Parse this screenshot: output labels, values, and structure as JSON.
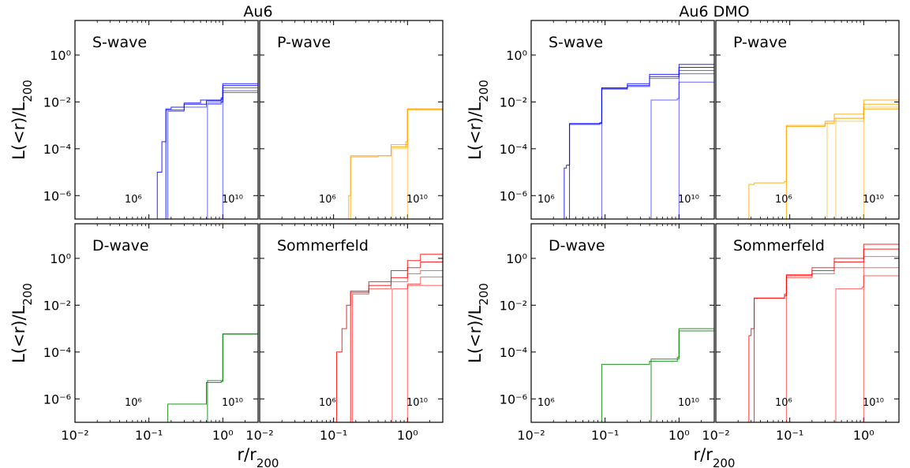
{
  "figure": {
    "panel_groups": [
      {
        "title": "Au6"
      },
      {
        "title": "Au6 DMO"
      }
    ],
    "ylabel": "L(<r)/L200",
    "xlabel": "r/r200",
    "x_tick_labels": [
      "10⁻²",
      "10⁻¹",
      "10⁰"
    ],
    "y_tick_labels": [
      "10⁰",
      "10⁻²",
      "10⁻⁴",
      "10⁻⁶"
    ],
    "mass_label_low": "10⁶",
    "mass_label_high": "10¹⁰"
  },
  "chart_data": [
    {
      "type": "line",
      "group": "Au6",
      "panel": "S-wave",
      "color": "#0000ff",
      "xscale": "log",
      "yscale": "log",
      "xlim": [
        0.01,
        3
      ],
      "ylim": [
        1e-07,
        30
      ],
      "series": [
        {
          "x": [
            0.1,
            0.13,
            0.15,
            0.17,
            0.2,
            0.3,
            0.5,
            0.95,
            1.0,
            3.0
          ],
          "y": [
            1e-07,
            1e-05,
            0.0002,
            0.005,
            0.006,
            0.009,
            0.012,
            0.015,
            0.06,
            0.07
          ]
        },
        {
          "x": [
            0.16,
            0.17,
            0.3,
            0.6,
            0.95,
            1.0,
            3.0
          ],
          "y": [
            1e-07,
            0.0045,
            0.008,
            0.011,
            0.013,
            0.05,
            0.055
          ]
        },
        {
          "x": [
            0.17,
            0.18,
            0.3,
            0.6,
            0.95,
            1.0,
            3.0
          ],
          "y": [
            1e-07,
            0.004,
            0.006,
            0.009,
            0.01,
            0.04,
            0.045
          ]
        },
        {
          "x": [
            0.6,
            0.62,
            0.95,
            1.0,
            3.0
          ],
          "y": [
            1e-07,
            0.008,
            0.01,
            0.03,
            0.035
          ]
        },
        {
          "x": [
            0.95,
            1.0,
            3.0
          ],
          "y": [
            1e-07,
            0.025,
            0.028
          ]
        }
      ],
      "label": "S-wave"
    },
    {
      "type": "line",
      "group": "Au6",
      "panel": "P-wave",
      "color": "#ffa500",
      "xscale": "log",
      "yscale": "log",
      "xlim": [
        0.01,
        3
      ],
      "ylim": [
        1e-07,
        30
      ],
      "series": [
        {
          "x": [
            0.14,
            0.16,
            0.17,
            0.4,
            0.6,
            0.95,
            1.0,
            3.0
          ],
          "y": [
            1e-07,
            1e-06,
            5e-05,
            5e-05,
            0.00015,
            0.0002,
            0.005,
            0.005
          ]
        },
        {
          "x": [
            0.16,
            0.17,
            0.4,
            0.6,
            0.95,
            1.0,
            3.0
          ],
          "y": [
            1e-07,
            4.5e-05,
            5e-05,
            0.00012,
            0.00015,
            0.005,
            0.005
          ]
        },
        {
          "x": [
            0.6,
            0.62,
            0.95,
            1.0,
            3.0
          ],
          "y": [
            1e-07,
            0.0001,
            0.00012,
            0.0048,
            0.0048
          ]
        },
        {
          "x": [
            0.95,
            1.0,
            3.0
          ],
          "y": [
            1e-07,
            0.0045,
            0.0046
          ]
        }
      ],
      "label": "P-wave"
    },
    {
      "type": "line",
      "group": "Au6",
      "panel": "D-wave",
      "color": "#008000",
      "xscale": "log",
      "yscale": "log",
      "xlim": [
        0.01,
        3
      ],
      "ylim": [
        1e-07,
        30
      ],
      "series": [
        {
          "x": [
            0.17,
            0.18,
            0.5,
            0.6,
            0.62,
            0.95,
            1.0,
            3.0
          ],
          "y": [
            1e-07,
            6e-07,
            6e-07,
            5e-06,
            6e-06,
            6e-06,
            0.0006,
            0.0006
          ]
        },
        {
          "x": [
            0.6,
            0.62,
            0.95,
            1.0,
            3.0
          ],
          "y": [
            1e-07,
            5e-06,
            5.5e-06,
            0.00058,
            0.0006
          ]
        }
      ],
      "label": "D-wave"
    },
    {
      "type": "line",
      "group": "Au6",
      "panel": "Sommerfeld",
      "color": "#ff0000",
      "xscale": "log",
      "yscale": "log",
      "xlim": [
        0.01,
        3
      ],
      "ylim": [
        1e-07,
        30
      ],
      "series": [
        {
          "x": [
            0.1,
            0.11,
            0.13,
            0.15,
            0.17,
            0.3,
            0.6,
            1.0,
            1.5,
            3.0
          ],
          "y": [
            1e-07,
            0.0001,
            0.001,
            0.01,
            0.04,
            0.1,
            0.3,
            0.8,
            1.5,
            1.6
          ]
        },
        {
          "x": [
            0.16,
            0.17,
            0.3,
            0.6,
            1.0,
            1.5,
            3.0
          ],
          "y": [
            1e-07,
            0.035,
            0.07,
            0.15,
            0.4,
            0.7,
            0.8
          ]
        },
        {
          "x": [
            0.17,
            0.18,
            0.3,
            0.6,
            1.0,
            1.5,
            3.0
          ],
          "y": [
            1e-07,
            0.03,
            0.05,
            0.1,
            0.22,
            0.3,
            0.35
          ]
        },
        {
          "x": [
            0.6,
            0.62,
            1.0,
            1.5,
            3.0
          ],
          "y": [
            1e-07,
            0.05,
            0.08,
            0.16,
            0.18
          ]
        },
        {
          "x": [
            0.95,
            1.0,
            3.0
          ],
          "y": [
            1e-07,
            0.07,
            0.09
          ]
        }
      ],
      "label": "Sommerfeld"
    },
    {
      "type": "line",
      "group": "Au6 DMO",
      "panel": "S-wave",
      "color": "#0000ff",
      "xscale": "log",
      "yscale": "log",
      "xlim": [
        0.01,
        3
      ],
      "ylim": [
        1e-07,
        30
      ],
      "series": [
        {
          "x": [
            0.025,
            0.028,
            0.03,
            0.033,
            0.085,
            0.09,
            0.2,
            0.4,
            1.0,
            3.0
          ],
          "y": [
            1e-07,
            1.5e-05,
            2e-05,
            0.0012,
            0.0013,
            0.04,
            0.06,
            0.15,
            0.4,
            0.6
          ]
        },
        {
          "x": [
            0.032,
            0.033,
            0.085,
            0.09,
            0.2,
            0.4,
            1.0,
            3.0
          ],
          "y": [
            1e-07,
            0.0011,
            0.0012,
            0.038,
            0.05,
            0.12,
            0.3,
            0.45
          ]
        },
        {
          "x": [
            0.085,
            0.09,
            0.2,
            0.4,
            1.0,
            3.0
          ],
          "y": [
            1e-07,
            0.035,
            0.045,
            0.1,
            0.22,
            0.3
          ]
        },
        {
          "x": [
            0.4,
            0.42,
            0.95,
            1.0,
            3.0
          ],
          "y": [
            1e-07,
            0.012,
            0.014,
            0.16,
            0.17
          ]
        },
        {
          "x": [
            0.95,
            1.0,
            3.0
          ],
          "y": [
            1e-07,
            0.07,
            0.07
          ]
        }
      ],
      "label": "S-wave"
    },
    {
      "type": "line",
      "group": "Au6 DMO",
      "panel": "P-wave",
      "color": "#ffa500",
      "xscale": "log",
      "yscale": "log",
      "xlim": [
        0.01,
        3
      ],
      "ylim": [
        1e-07,
        30
      ],
      "series": [
        {
          "x": [
            0.025,
            0.028,
            0.033,
            0.085,
            0.09,
            0.3,
            0.4,
            1.0,
            3.0
          ],
          "y": [
            1e-07,
            3e-06,
            3.5e-06,
            4e-06,
            0.001,
            0.0015,
            0.003,
            0.012,
            0.015
          ]
        },
        {
          "x": [
            0.085,
            0.09,
            0.3,
            0.4,
            1.0,
            3.0
          ],
          "y": [
            1e-07,
            0.0009,
            0.0012,
            0.002,
            0.008,
            0.01
          ]
        },
        {
          "x": [
            0.3,
            0.32,
            1.0,
            3.0
          ],
          "y": [
            1e-07,
            0.0015,
            0.006,
            0.008
          ]
        },
        {
          "x": [
            0.4,
            0.42,
            1.0,
            3.0
          ],
          "y": [
            1e-07,
            0.002,
            0.005,
            0.007
          ]
        },
        {
          "x": [
            0.95,
            1.0,
            3.0
          ],
          "y": [
            1e-07,
            0.005,
            0.006
          ]
        }
      ],
      "label": "P-wave"
    },
    {
      "type": "line",
      "group": "Au6 DMO",
      "panel": "D-wave",
      "color": "#008000",
      "xscale": "log",
      "yscale": "log",
      "xlim": [
        0.01,
        3
      ],
      "ylim": [
        1e-07,
        30
      ],
      "series": [
        {
          "x": [
            0.085,
            0.09,
            0.4,
            0.42,
            0.95,
            1.0,
            3.0
          ],
          "y": [
            1e-07,
            3e-05,
            4e-05,
            5e-05,
            6e-05,
            0.001,
            0.0011
          ]
        },
        {
          "x": [
            0.4,
            0.42,
            0.95,
            1.0,
            3.0
          ],
          "y": [
            1e-07,
            4e-05,
            5e-05,
            0.0008,
            0.0009
          ]
        }
      ],
      "label": "D-wave"
    },
    {
      "type": "line",
      "group": "Au6 DMO",
      "panel": "Sommerfeld",
      "color": "#ff0000",
      "xscale": "log",
      "yscale": "log",
      "xlim": [
        0.01,
        3
      ],
      "ylim": [
        1e-07,
        30
      ],
      "series": [
        {
          "x": [
            0.025,
            0.028,
            0.03,
            0.033,
            0.085,
            0.09,
            0.2,
            0.4,
            1.0,
            3.0
          ],
          "y": [
            1e-07,
            0.0005,
            0.001,
            0.02,
            0.03,
            0.2,
            0.4,
            1.0,
            4.0,
            6.0
          ]
        },
        {
          "x": [
            0.032,
            0.033,
            0.085,
            0.09,
            0.2,
            0.4,
            1.0,
            3.0
          ],
          "y": [
            1e-07,
            0.02,
            0.025,
            0.18,
            0.3,
            0.7,
            2.5,
            3.5
          ]
        },
        {
          "x": [
            0.085,
            0.09,
            0.2,
            0.4,
            1.0,
            3.0
          ],
          "y": [
            1e-07,
            0.15,
            0.22,
            0.4,
            1.2,
            1.8
          ]
        },
        {
          "x": [
            0.4,
            0.42,
            0.95,
            1.0,
            3.0
          ],
          "y": [
            1e-07,
            0.05,
            0.06,
            0.4,
            0.5
          ]
        },
        {
          "x": [
            0.95,
            1.0,
            3.0
          ],
          "y": [
            1e-07,
            0.18,
            0.2
          ]
        }
      ],
      "label": "Sommerfeld"
    }
  ]
}
